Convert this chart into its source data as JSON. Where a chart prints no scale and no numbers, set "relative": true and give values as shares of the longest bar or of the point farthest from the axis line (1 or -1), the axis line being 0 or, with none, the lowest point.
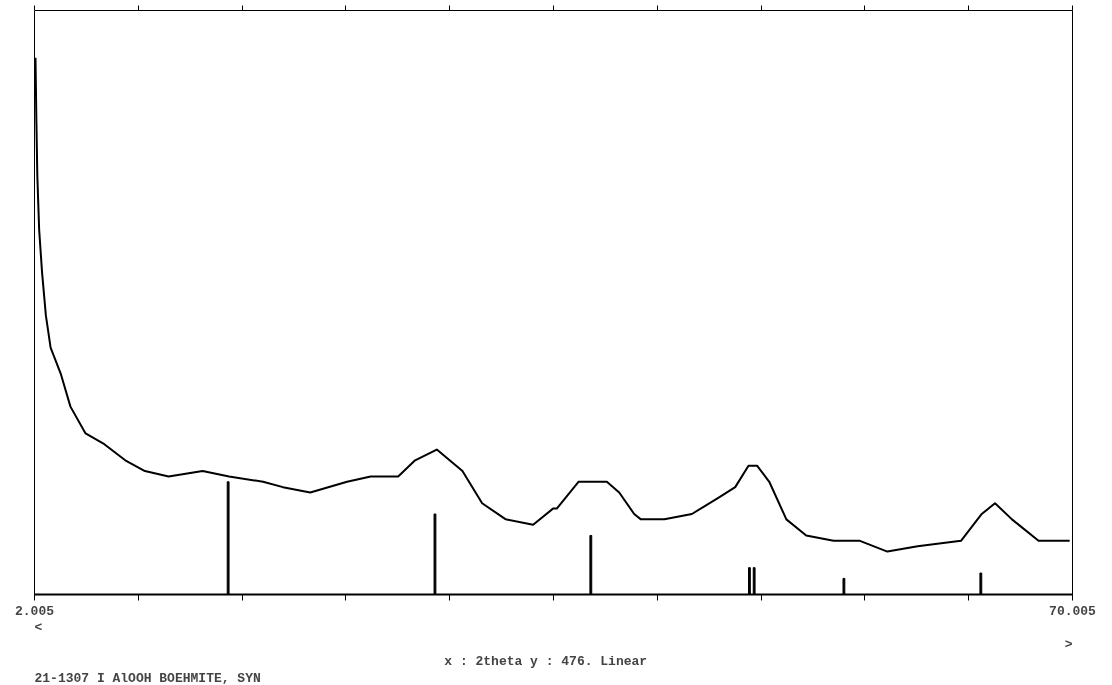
{
  "chart_data": {
    "type": "line",
    "relative": true,
    "xlim": [
      2.005,
      70.005
    ],
    "xticks": [
      2.005,
      {
        "value": 8.805,
        "label": null
      },
      {
        "value": 15.605,
        "label": null
      },
      {
        "value": 22.405,
        "label": null
      },
      {
        "value": 29.205,
        "label": null
      },
      {
        "value": 36.005,
        "label": null
      },
      {
        "value": 42.805,
        "label": null
      },
      {
        "value": 49.605,
        "label": null
      },
      {
        "value": 56.405,
        "label": null
      },
      {
        "value": 63.205,
        "label": null
      },
      70.005
    ],
    "grid": false,
    "marker": "none",
    "line_style": "solid",
    "series": [
      {
        "color": "#000000",
        "x": [
          2.07,
          2.13,
          2.19,
          2.31,
          2.5,
          2.75,
          3.06,
          3.74,
          4.36,
          5.35,
          6.58,
          7.95,
          9.24,
          10.79,
          13.02,
          14.75,
          16.98,
          18.28,
          20.07,
          22.48,
          24.03,
          25.83,
          26.94,
          28.36,
          30.04,
          31.33,
          32.88,
          34.67,
          35.97,
          36.22,
          37.64,
          38.88,
          39.5,
          40.31,
          41.29,
          41.73,
          43.27,
          45.07,
          46.8,
          47.91,
          48.78,
          49.34,
          50.14,
          51.26,
          52.56,
          54.35,
          56.08,
          57.88,
          59.86,
          62.7,
          64.06,
          64.93,
          66.04,
          67.78,
          69.82
        ],
        "values": [
          1.0,
          0.88,
          0.78,
          0.68,
          0.6,
          0.52,
          0.46,
          0.41,
          0.35,
          0.3,
          0.28,
          0.25,
          0.23,
          0.22,
          0.23,
          0.22,
          0.21,
          0.2,
          0.19,
          0.21,
          0.22,
          0.22,
          0.25,
          0.27,
          0.23,
          0.17,
          0.14,
          0.13,
          0.16,
          0.16,
          0.21,
          0.21,
          0.21,
          0.19,
          0.15,
          0.14,
          0.14,
          0.15,
          0.18,
          0.2,
          0.24,
          0.24,
          0.21,
          0.14,
          0.11,
          0.1,
          0.1,
          0.08,
          0.09,
          0.1,
          0.15,
          0.17,
          0.14,
          0.1,
          0.1
        ]
      },
      {
        "type": "bar",
        "color": "#000000",
        "x": [
          14.69,
          28.24,
          38.45,
          48.84,
          49.15,
          55.03,
          64.0
        ],
        "values": [
          0.21,
          0.15,
          0.11,
          0.05,
          0.05,
          0.03,
          0.04
        ]
      }
    ],
    "annotations": [
      "<",
      ">",
      "x : 2theta y :   476. Linear",
      "21-1307 I AlOOH BOEHMITE, SYN"
    ]
  }
}
